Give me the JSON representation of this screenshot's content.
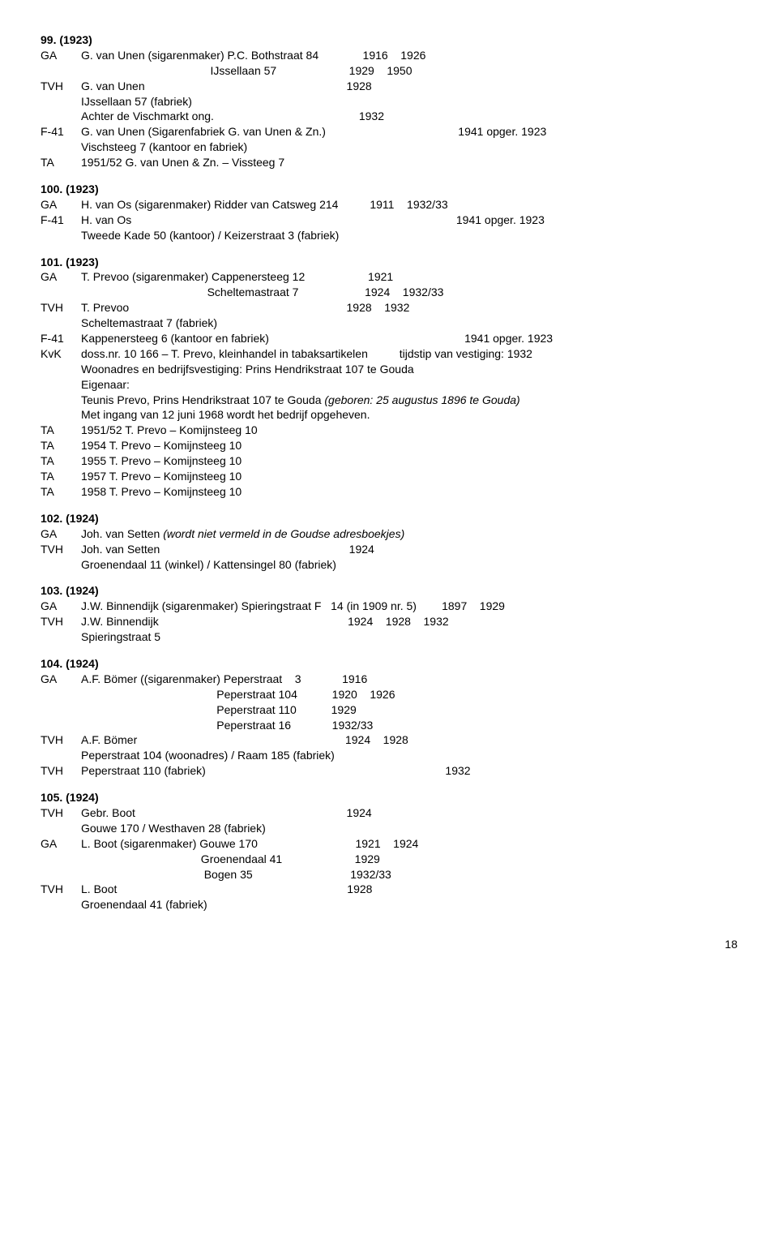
{
  "page_number": "18",
  "entries": [
    {
      "id": "99",
      "header": "99. (1923)",
      "lines": [
        {
          "src": "GA",
          "txt": "G. van Unen (sigarenmaker) P.C. Bothstraat 84              1916    1926"
        },
        {
          "src": "",
          "txt": "                                         IJssellaan 57                       1929    1950"
        },
        {
          "src": "TVH",
          "txt": "G. van Unen                                                                1928"
        },
        {
          "src": "",
          "txt": "IJssellaan 57 (fabriek)"
        },
        {
          "src": "",
          "txt": "Achter de Vischmarkt ong.                                              1932"
        },
        {
          "src": "F-41",
          "txt": "G. van Unen (Sigarenfabriek G. van Unen & Zn.)                                          1941 opger. 1923"
        },
        {
          "src": "",
          "txt": "Vischsteeg 7 (kantoor en fabriek)"
        },
        {
          "src": "TA",
          "txt": "1951/52 G. van Unen & Zn. – Vissteeg 7"
        }
      ]
    },
    {
      "id": "100",
      "header": "100. (1923)",
      "lines": [
        {
          "src": "GA",
          "txt": "H. van Os (sigarenmaker) Ridder van Catsweg 214          1911    1932/33"
        },
        {
          "src": "F-41",
          "txt": "H. van Os                                                                                                       1941 opger. 1923"
        },
        {
          "src": "",
          "txt": "Tweede Kade 50 (kantoor) / Keizerstraat 3 (fabriek)"
        }
      ]
    },
    {
      "id": "101",
      "header": "101. (1923)",
      "lines": [
        {
          "src": "GA",
          "txt": "T. Prevoo (sigarenmaker) Cappenersteeg 12                    1921"
        },
        {
          "src": "",
          "txt": "                                        Scheltemastraat 7                     1924    1932/33"
        },
        {
          "src": "TVH",
          "txt": "T. Prevoo                                                                     1928    1932"
        },
        {
          "src": "",
          "txt": "Scheltemastraat 7 (fabriek)"
        },
        {
          "src": "F-41",
          "txt": "Kappenersteeg 6 (kantoor en fabriek)                                                              1941 opger. 1923"
        },
        {
          "src": "KvK",
          "txt": "doss.nr. 10 166 – T. Prevo, kleinhandel in tabaksartikelen          tijdstip van vestiging: 1932"
        },
        {
          "src": "",
          "txt": "Woonadres en bedrijfsvestiging: Prins Hendrikstraat 107 te Gouda"
        },
        {
          "src": "",
          "txt": "Eigenaar:"
        },
        {
          "src": "",
          "txt_html": "Teunis Prevo, Prins Hendrikstraat 107 te Gouda <span class=\"italic\">(geboren: 25 augustus 1896 te Gouda)</span>"
        },
        {
          "src": "",
          "txt": "Met ingang van 12 juni 1968 wordt het bedrijf opgeheven."
        },
        {
          "src": "TA",
          "txt": "1951/52 T. Prevo – Komijnsteeg 10"
        },
        {
          "src": "TA",
          "txt": "1954 T. Prevo – Komijnsteeg 10"
        },
        {
          "src": "TA",
          "txt": "1955 T. Prevo – Komijnsteeg 10"
        },
        {
          "src": "TA",
          "txt": "1957 T. Prevo – Komijnsteeg 10"
        },
        {
          "src": "TA",
          "txt": "1958 T. Prevo – Komijnsteeg 10"
        }
      ]
    },
    {
      "id": "102",
      "header": "102. (1924)",
      "lines": [
        {
          "src": "GA",
          "txt_html": "Joh. van Setten <span class=\"italic\">(wordt niet vermeld in de Goudse adresboekjes)</span>"
        },
        {
          "src": "TVH",
          "txt": "Joh. van Setten                                                            1924"
        },
        {
          "src": "",
          "txt": "Groenendaal 11 (winkel) / Kattensingel 80 (fabriek)"
        }
      ]
    },
    {
      "id": "103",
      "header": "103. (1924)",
      "lines": [
        {
          "src": "GA",
          "txt": "J.W. Binnendijk (sigarenmaker) Spieringstraat F   14 (in 1909 nr. 5)        1897    1929"
        },
        {
          "src": "TVH",
          "txt": "J.W. Binnendijk                                                            1924    1928    1932"
        },
        {
          "src": "",
          "txt": "Spieringstraat 5"
        }
      ]
    },
    {
      "id": "104",
      "header": "104. (1924)",
      "lines": [
        {
          "src": "GA",
          "txt": "A.F. Bömer ((sigarenmaker) Peperstraat    3             1916"
        },
        {
          "src": "",
          "txt": "                                           Peperstraat 104           1920    1926"
        },
        {
          "src": "",
          "txt": "                                           Peperstraat 110           1929"
        },
        {
          "src": "",
          "txt": "                                           Peperstraat 16             1932/33"
        },
        {
          "src": "TVH",
          "txt": "A.F. Bömer                                                                  1924    1928"
        },
        {
          "src": "",
          "txt": "Peperstraat 104 (woonadres) / Raam 185 (fabriek)"
        },
        {
          "src": "TVH",
          "txt": "Peperstraat 110 (fabriek)                                                                            1932"
        }
      ]
    },
    {
      "id": "105",
      "header": "105. (1924)",
      "lines": [
        {
          "src": "TVH",
          "txt": "Gebr. Boot                                                                   1924"
        },
        {
          "src": "",
          "txt": "Gouwe 170 / Westhaven 28 (fabriek)"
        },
        {
          "src": "GA",
          "txt": "L. Boot (sigarenmaker) Gouwe 170                               1921    1924"
        },
        {
          "src": "",
          "txt": "                                      Groenendaal 41                       1929"
        },
        {
          "src": "",
          "txt": "                                       Bogen 35                               1932/33"
        },
        {
          "src": "TVH",
          "txt": "L. Boot                                                                         1928"
        },
        {
          "src": "",
          "txt": "Groenendaal 41 (fabriek)"
        }
      ]
    }
  ]
}
